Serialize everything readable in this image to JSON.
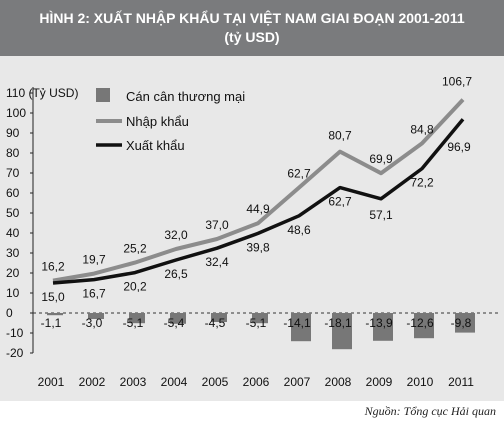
{
  "header": {
    "line1": "HÌNH 2: XUẤT NHẬP KHẨU TẠI VIỆT NAM GIAI ĐOẠN 2001-2011",
    "line2": "(tỷ USD)"
  },
  "source": "Nguồn: Tổng cục Hải quan",
  "colors": {
    "header_bg": "#7a7b7d",
    "plot_bg": "#e8e8e8",
    "bar": "#777777",
    "import": "#8c8c8c",
    "export": "#111111"
  },
  "chart_data": {
    "type": "line",
    "title": "HÌNH 2: XUẤT NHẬP KHẨU TẠI VIỆT NAM GIAI ĐOẠN 2001-2011",
    "subtitle": "(tỷ USD)",
    "ylabel": "(Tỷ USD)",
    "ylim": [
      -20,
      110
    ],
    "yticks": [
      -20,
      -10,
      0,
      10,
      20,
      30,
      40,
      50,
      60,
      70,
      80,
      90,
      100,
      110
    ],
    "ytick_labels": [
      "-20",
      "-10",
      "0",
      "10",
      "20",
      "30",
      "40",
      "50",
      "60",
      "70",
      "80",
      "90",
      "100",
      "110 (Tỷ USD)"
    ],
    "categories": [
      "2001",
      "2002",
      "2003",
      "2004",
      "2005",
      "2006",
      "2007",
      "2008",
      "2009",
      "2010",
      "2011"
    ],
    "legend_position": "top-left",
    "grid": false,
    "series": [
      {
        "name": "Cán cân thương mại",
        "type": "bar",
        "color": "#777777",
        "values": [
          -1.1,
          -3.0,
          -5.1,
          -5.4,
          -4.5,
          -5.1,
          -14.1,
          -18.1,
          -13.9,
          -12.6,
          -9.8
        ],
        "labels": [
          "-1,1",
          "-3,0",
          "-5,1",
          "-5,4",
          "-4,5",
          "-5,1",
          "-14,1",
          "-18,1",
          "-13,9",
          "-12,6",
          "-9,8"
        ]
      },
      {
        "name": "Nhập khẩu",
        "type": "line",
        "color": "#8c8c8c",
        "values": [
          16.2,
          19.7,
          25.2,
          32.0,
          37.0,
          44.9,
          62.7,
          80.7,
          69.9,
          84.8,
          106.7
        ],
        "labels": [
          "16,2",
          "19,7",
          "25,2",
          "32,0",
          "37,0",
          "44,9",
          "62,7",
          "80,7",
          "69,9",
          "84,8",
          "106,7"
        ]
      },
      {
        "name": "Xuất khẩu",
        "type": "line",
        "color": "#111111",
        "values": [
          15.0,
          16.7,
          20.2,
          26.5,
          32.4,
          39.8,
          48.6,
          62.7,
          57.1,
          72.2,
          96.9
        ],
        "labels": [
          "15,0",
          "16,7",
          "20,2",
          "26,5",
          "32,4",
          "39,8",
          "48,6",
          "62,7",
          "57,1",
          "72,2",
          "96,9"
        ]
      }
    ]
  }
}
